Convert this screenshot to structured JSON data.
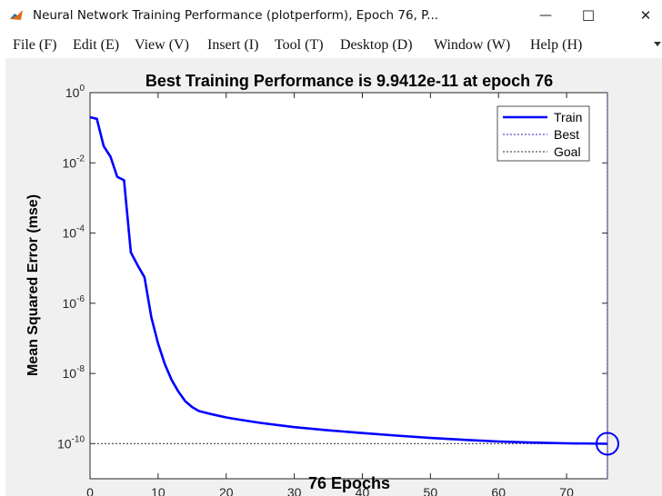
{
  "window": {
    "title": "Neural Network Training Performance (plotperform), Epoch 76, P...",
    "minimize_glyph": "—",
    "maximize_glyph": "☐",
    "close_glyph": "✕"
  },
  "menu": {
    "items": [
      {
        "label": "File",
        "key": "(F)"
      },
      {
        "label": "Edit",
        "key": "(E)"
      },
      {
        "label": "View",
        "key": "(V)"
      },
      {
        "label": "Insert",
        "key": "(I)"
      },
      {
        "label": "Tool",
        "key": "(T)"
      },
      {
        "label": "Desktop",
        "key": "(D)"
      },
      {
        "label": "Window",
        "key": "(W)"
      },
      {
        "label": "Help",
        "key": "(H)"
      }
    ]
  },
  "colors": {
    "train": "#0000ff",
    "best": "#5050c8",
    "goal": "#555555",
    "axes_bg": "#ffffff",
    "figure_bg": "#f0f0f0"
  },
  "icons": {
    "app": "matlab-icon",
    "toolbar": "dock-arrow-icon"
  },
  "chart_data": {
    "type": "line",
    "title": "Best Training Performance is 9.9412e-11 at epoch 76",
    "xlabel": "76 Epochs",
    "ylabel": "Mean Squared Error  (mse)",
    "xlim": [
      0,
      76
    ],
    "ylim": [
      1e-11,
      1
    ],
    "yscale": "log",
    "xticks": [
      "0",
      "10",
      "20",
      "30",
      "40",
      "50",
      "60",
      "70"
    ],
    "xtick_values": [
      0,
      10,
      20,
      30,
      40,
      50,
      60,
      70
    ],
    "yticks": [
      {
        "base": "10",
        "exp": "0",
        "value": 1
      },
      {
        "base": "10",
        "exp": "-2",
        "value": 0.01
      },
      {
        "base": "10",
        "exp": "-4",
        "value": 0.0001
      },
      {
        "base": "10",
        "exp": "-6",
        "value": 1e-06
      },
      {
        "base": "10",
        "exp": "-8",
        "value": 1e-08
      },
      {
        "base": "10",
        "exp": "-10",
        "value": 1e-10
      }
    ],
    "legend": {
      "position": "top-right",
      "entries": [
        "Train",
        "Best",
        "Goal"
      ]
    },
    "grid": false,
    "series": [
      {
        "name": "Train",
        "x": [
          0,
          1,
          2,
          3,
          4,
          5,
          6,
          7,
          8,
          9,
          10,
          11,
          12,
          13,
          14,
          15,
          16,
          18,
          20,
          22,
          25,
          28,
          30,
          35,
          40,
          45,
          50,
          55,
          60,
          65,
          70,
          76
        ],
        "y": [
          0.2,
          0.18,
          0.03,
          0.015,
          0.004,
          0.0032,
          2.8e-05,
          1.2e-05,
          5.5e-06,
          4e-07,
          7e-08,
          1.8e-08,
          6.5e-09,
          3e-09,
          1.6e-09,
          1.1e-09,
          8.5e-10,
          6.8e-10,
          5.6e-10,
          4.8e-10,
          3.9e-10,
          3.3e-10,
          2.95e-10,
          2.4e-10,
          2e-10,
          1.7e-10,
          1.45e-10,
          1.28e-10,
          1.15e-10,
          1.07e-10,
          1.02e-10,
          9.9412e-11
        ]
      }
    ],
    "best": {
      "epoch": 76,
      "value": 9.9412e-11
    },
    "goal": {
      "value": 1e-10
    }
  }
}
